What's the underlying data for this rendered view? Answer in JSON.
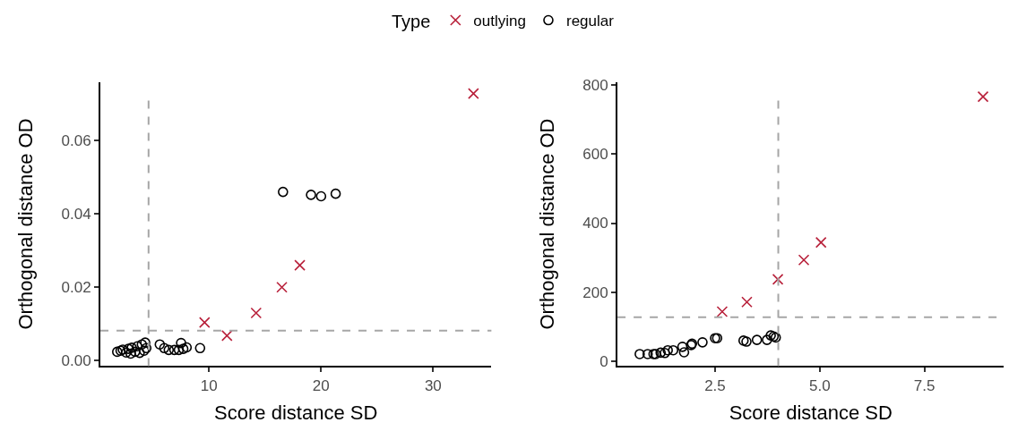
{
  "chart_data": [
    {
      "type": "scatter",
      "xlabel": "Score distance SD",
      "ylabel": "Orthogonal distance OD",
      "legend": "top",
      "legend_title": "Type",
      "xlim": [
        0.3,
        35.2
      ],
      "xticks": [
        10,
        20,
        30
      ],
      "ylim": [
        -0.0015,
        0.076
      ],
      "yticks": [
        {
          "value": 0,
          "label": "0.00"
        },
        {
          "value": 0.02,
          "label": "0.02"
        },
        {
          "value": 0.04,
          "label": "0.04"
        },
        {
          "value": 0.06,
          "label": "0.06"
        }
      ],
      "ref_lines": [
        {
          "axis": "x",
          "value": 4.6,
          "color": "#a6a6a6",
          "line_style": "dashed"
        },
        {
          "axis": "y",
          "value": 0.0082,
          "color": "#a6a6a6",
          "line_style": "dashed"
        }
      ],
      "series": [
        {
          "name": "outlying",
          "color": "#b8203a",
          "marker": "cross",
          "x": [
            9.6,
            11.6,
            14.2,
            16.5,
            18.1,
            33.6
          ],
          "values": [
            0.0104,
            0.0068,
            0.013,
            0.02,
            0.026,
            0.0728
          ]
        },
        {
          "name": "regular",
          "color": "#000000",
          "marker": "circle",
          "x": [
            16.6,
            19.1,
            20.0,
            21.3,
            1.8,
            2.1,
            2.3,
            2.6,
            2.8,
            3.0,
            3.1,
            3.4,
            3.6,
            3.8,
            4.0,
            4.2,
            4.4,
            4.3,
            5.6,
            6.0,
            6.4,
            6.9,
            7.3,
            7.5,
            7.7,
            8.0,
            9.2
          ],
          "values": [
            0.046,
            0.0452,
            0.0448,
            0.0455,
            0.0024,
            0.0027,
            0.003,
            0.0022,
            0.0032,
            0.0019,
            0.0035,
            0.0024,
            0.0039,
            0.0021,
            0.0044,
            0.0027,
            0.0034,
            0.0049,
            0.0044,
            0.0034,
            0.0029,
            0.0029,
            0.0029,
            0.0048,
            0.0032,
            0.0036,
            0.0034
          ]
        }
      ]
    },
    {
      "type": "scatter",
      "xlabel": "Score distance SD",
      "ylabel": "Orthogonal distance OD",
      "xlim": [
        0.17,
        9.4
      ],
      "xticks": [
        2.5,
        {
          "value": 5,
          "label": "5.0"
        },
        7.5
      ],
      "ylim": [
        -15,
        810
      ],
      "yticks": [
        0,
        200,
        400,
        600,
        800
      ],
      "ref_lines": [
        {
          "axis": "x",
          "value": 4.01,
          "color": "#a6a6a6",
          "line_style": "dashed"
        },
        {
          "axis": "y",
          "value": 127,
          "color": "#a6a6a6",
          "line_style": "dashed"
        }
      ],
      "series": [
        {
          "color": "#b8203a",
          "marker": "cross",
          "x": [
            2.67,
            3.26,
            4.0,
            4.62,
            5.03,
            8.9
          ],
          "values": [
            143,
            171,
            237,
            293,
            344,
            767
          ]
        },
        {
          "color": "#000000",
          "marker": "circle",
          "x": [
            0.7,
            0.89,
            1.03,
            1.08,
            1.2,
            1.3,
            1.37,
            1.5,
            1.72,
            1.76,
            1.93,
            1.95,
            2.2,
            2.5,
            2.55,
            3.18,
            3.25,
            3.5,
            3.74,
            3.83,
            3.9,
            3.95
          ],
          "values": [
            20,
            20,
            20,
            20,
            24,
            23,
            31,
            31,
            41,
            25,
            46,
            50,
            54,
            66,
            66,
            59,
            56,
            61,
            61,
            74,
            71,
            68
          ]
        }
      ]
    }
  ]
}
